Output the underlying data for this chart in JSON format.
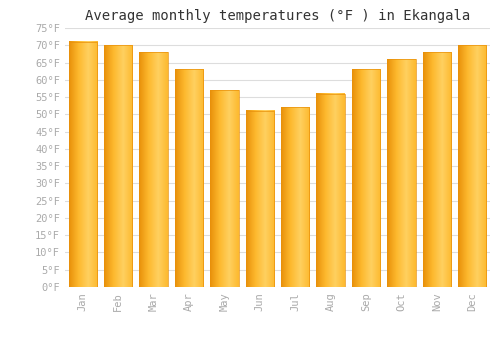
{
  "title": "Average monthly temperatures (°F ) in Ekangala",
  "months": [
    "Jan",
    "Feb",
    "Mar",
    "Apr",
    "May",
    "Jun",
    "Jul",
    "Aug",
    "Sep",
    "Oct",
    "Nov",
    "Dec"
  ],
  "values": [
    71,
    70,
    68,
    63,
    57,
    51,
    52,
    56,
    63,
    66,
    68,
    70
  ],
  "bar_color_main": "#FDB92E",
  "bar_color_left": "#E8900A",
  "ylim": [
    0,
    75
  ],
  "yticks": [
    0,
    5,
    10,
    15,
    20,
    25,
    30,
    35,
    40,
    45,
    50,
    55,
    60,
    65,
    70,
    75
  ],
  "ytick_labels": [
    "0°F",
    "5°F",
    "10°F",
    "15°F",
    "20°F",
    "25°F",
    "30°F",
    "35°F",
    "40°F",
    "45°F",
    "50°F",
    "55°F",
    "60°F",
    "65°F",
    "70°F",
    "75°F"
  ],
  "background_color": "#ffffff",
  "grid_color": "#dddddd",
  "title_fontsize": 10,
  "tick_fontsize": 7.5,
  "font_family": "monospace"
}
